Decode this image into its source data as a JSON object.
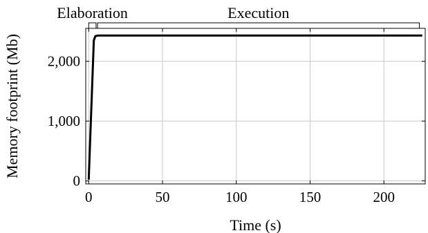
{
  "chart_data": {
    "type": "line",
    "xlabel": "Time (s)",
    "ylabel": "Memory footprint (Mb)",
    "xlim": [
      -2,
      228
    ],
    "ylim": [
      -50,
      2550
    ],
    "x_ticks": [
      0,
      50,
      100,
      150,
      200
    ],
    "x_tick_labels": [
      "0",
      "50",
      "100",
      "150",
      "200"
    ],
    "y_ticks": [
      0,
      1000,
      2000
    ],
    "y_tick_labels": [
      "0",
      "1,000",
      "2,000"
    ],
    "grid": true,
    "series": [
      {
        "x": [
          0,
          3.5,
          4.5,
          6,
          226
        ],
        "y": [
          20,
          2350,
          2420,
          2430,
          2430
        ]
      }
    ],
    "phases": [
      {
        "label": "Elaboration",
        "start": 0,
        "end": 5
      },
      {
        "label": "Execution",
        "start": 6,
        "end": 224
      }
    ]
  }
}
